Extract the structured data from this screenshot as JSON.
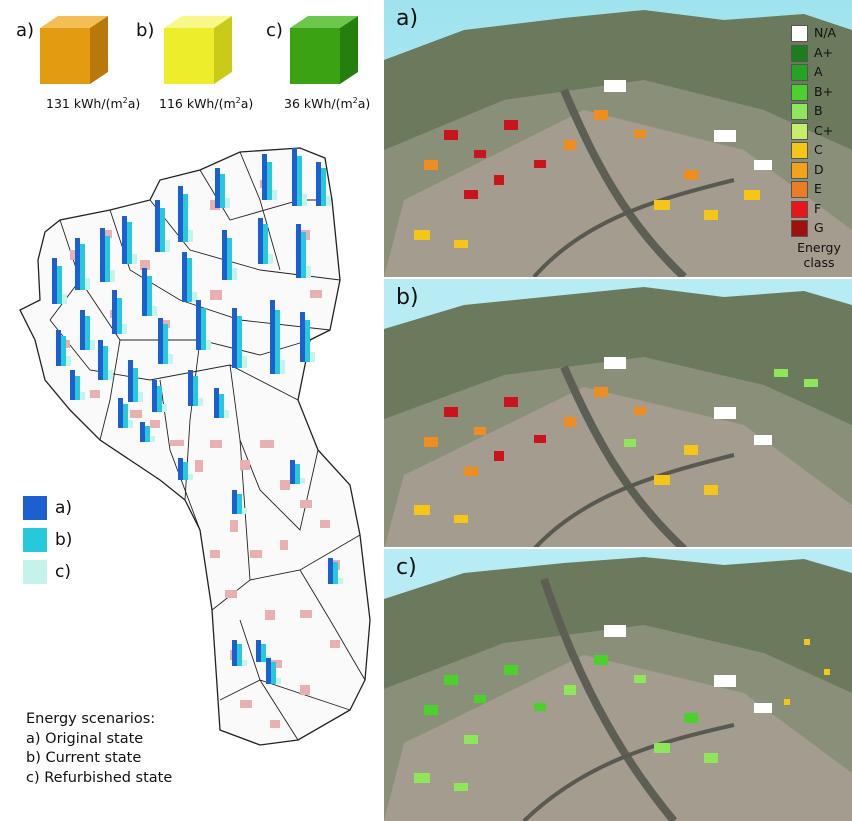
{
  "cubes": [
    {
      "tag": "a)",
      "value": "131 kWh/(m",
      "unit_sup": "2",
      "unit_end": "a)",
      "color": "#e8a215"
    },
    {
      "tag": "b)",
      "value": "116 kWh/(m",
      "unit_sup": "2",
      "unit_end": "a)",
      "color": "#ecec2a"
    },
    {
      "tag": "c)",
      "value": "36 kWh/(m",
      "unit_sup": "2",
      "unit_end": "a)",
      "color": "#3aa314"
    }
  ],
  "map_legend": [
    {
      "label": "a)",
      "color": "#1d5fcf"
    },
    {
      "label": "b)",
      "color": "#26c9d9"
    },
    {
      "label": "c)",
      "color": "#c5f3ec"
    }
  ],
  "scenarios": {
    "title": "Energy scenarios:",
    "items": [
      "a) Original state",
      "b) Current state",
      "c) Refurbished state"
    ]
  },
  "panels": [
    {
      "tag": "a)"
    },
    {
      "tag": "b)"
    },
    {
      "tag": "c)"
    }
  ],
  "energy_class": {
    "title_1": "Energy",
    "title_2": "class",
    "items": [
      {
        "label": "N/A",
        "color": "#ffffff"
      },
      {
        "label": "A+",
        "color": "#1b7d1b"
      },
      {
        "label": "A",
        "color": "#23a523"
      },
      {
        "label": "B+",
        "color": "#4bd12b"
      },
      {
        "label": "B",
        "color": "#8ee65a"
      },
      {
        "label": "C+",
        "color": "#c5ef6b"
      },
      {
        "label": "C",
        "color": "#f5c518"
      },
      {
        "label": "D",
        "color": "#f3a31a"
      },
      {
        "label": "E",
        "color": "#ec7d22"
      },
      {
        "label": "F",
        "color": "#e8161a"
      },
      {
        "label": "G",
        "color": "#a0100f"
      }
    ]
  }
}
